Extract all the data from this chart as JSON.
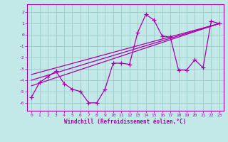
{
  "xlabel": "Windchill (Refroidissement éolien,°C)",
  "bg_color": "#c2e8e8",
  "line_color": "#aa00aa",
  "grid_color": "#99cccc",
  "series": [
    [
      0,
      -5.5
    ],
    [
      1,
      -4.2
    ],
    [
      2,
      -3.7
    ],
    [
      3,
      -3.2
    ],
    [
      4,
      -4.3
    ],
    [
      5,
      -4.8
    ],
    [
      6,
      -5.0
    ],
    [
      7,
      -6.0
    ],
    [
      8,
      -6.0
    ],
    [
      9,
      -4.8
    ],
    [
      10,
      -2.5
    ],
    [
      11,
      -2.5
    ],
    [
      12,
      -2.6
    ],
    [
      13,
      0.2
    ],
    [
      14,
      1.8
    ],
    [
      15,
      1.3
    ],
    [
      16,
      -0.1
    ],
    [
      17,
      -0.2
    ],
    [
      18,
      -3.1
    ],
    [
      19,
      -3.1
    ],
    [
      20,
      -2.2
    ],
    [
      21,
      -2.9
    ],
    [
      22,
      1.2
    ],
    [
      23,
      1.0
    ]
  ],
  "line2": [
    [
      0,
      -3.5
    ],
    [
      23,
      1.0
    ]
  ],
  "line3": [
    [
      0,
      -4.0
    ],
    [
      23,
      1.0
    ]
  ],
  "line4": [
    [
      0,
      -4.5
    ],
    [
      23,
      1.0
    ]
  ],
  "xlim": [
    -0.5,
    23.5
  ],
  "ylim": [
    -6.7,
    2.7
  ],
  "yticks": [
    -6,
    -5,
    -4,
    -3,
    -2,
    -1,
    0,
    1,
    2
  ],
  "xticks": [
    0,
    1,
    2,
    3,
    4,
    5,
    6,
    7,
    8,
    9,
    10,
    11,
    12,
    13,
    14,
    15,
    16,
    17,
    18,
    19,
    20,
    21,
    22,
    23
  ]
}
